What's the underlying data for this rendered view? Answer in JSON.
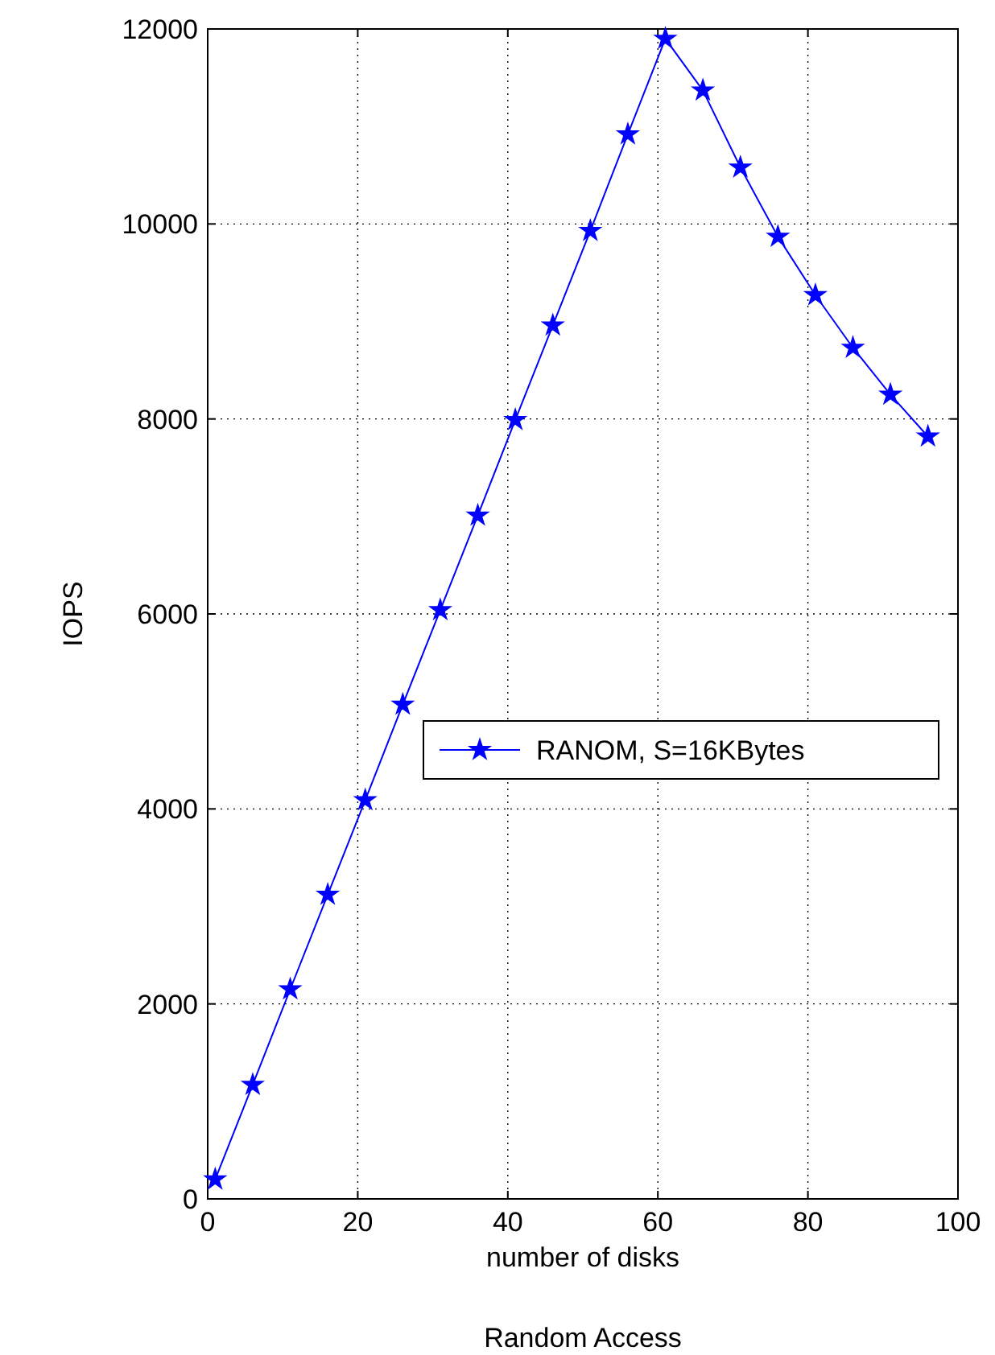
{
  "chart_data": {
    "type": "line",
    "xlabel": "number of disks",
    "ylabel": "IOPS",
    "annotations": [
      "Random Access"
    ],
    "x": [
      1,
      6,
      11,
      16,
      21,
      26,
      31,
      36,
      41,
      46,
      51,
      56,
      61,
      66,
      71,
      76,
      81,
      86,
      91,
      96
    ],
    "series": [
      {
        "name": "RANOM, S=16KBytes",
        "color": "#0000ff",
        "values": [
          200,
          1170,
          2150,
          3120,
          4090,
          5070,
          6040,
          7010,
          7990,
          8960,
          9930,
          10920,
          11900,
          11370,
          10580,
          9870,
          9270,
          8730,
          8250,
          7820
        ]
      }
    ],
    "xlim": [
      0,
      100
    ],
    "xticks": [
      0,
      20,
      40,
      60,
      80,
      100
    ],
    "ylim": [
      0,
      12000
    ],
    "yticks": [
      0,
      2000,
      4000,
      6000,
      8000,
      10000,
      12000
    ],
    "grid": true,
    "legend": "right",
    "marker": "star",
    "line_style": "solid"
  }
}
